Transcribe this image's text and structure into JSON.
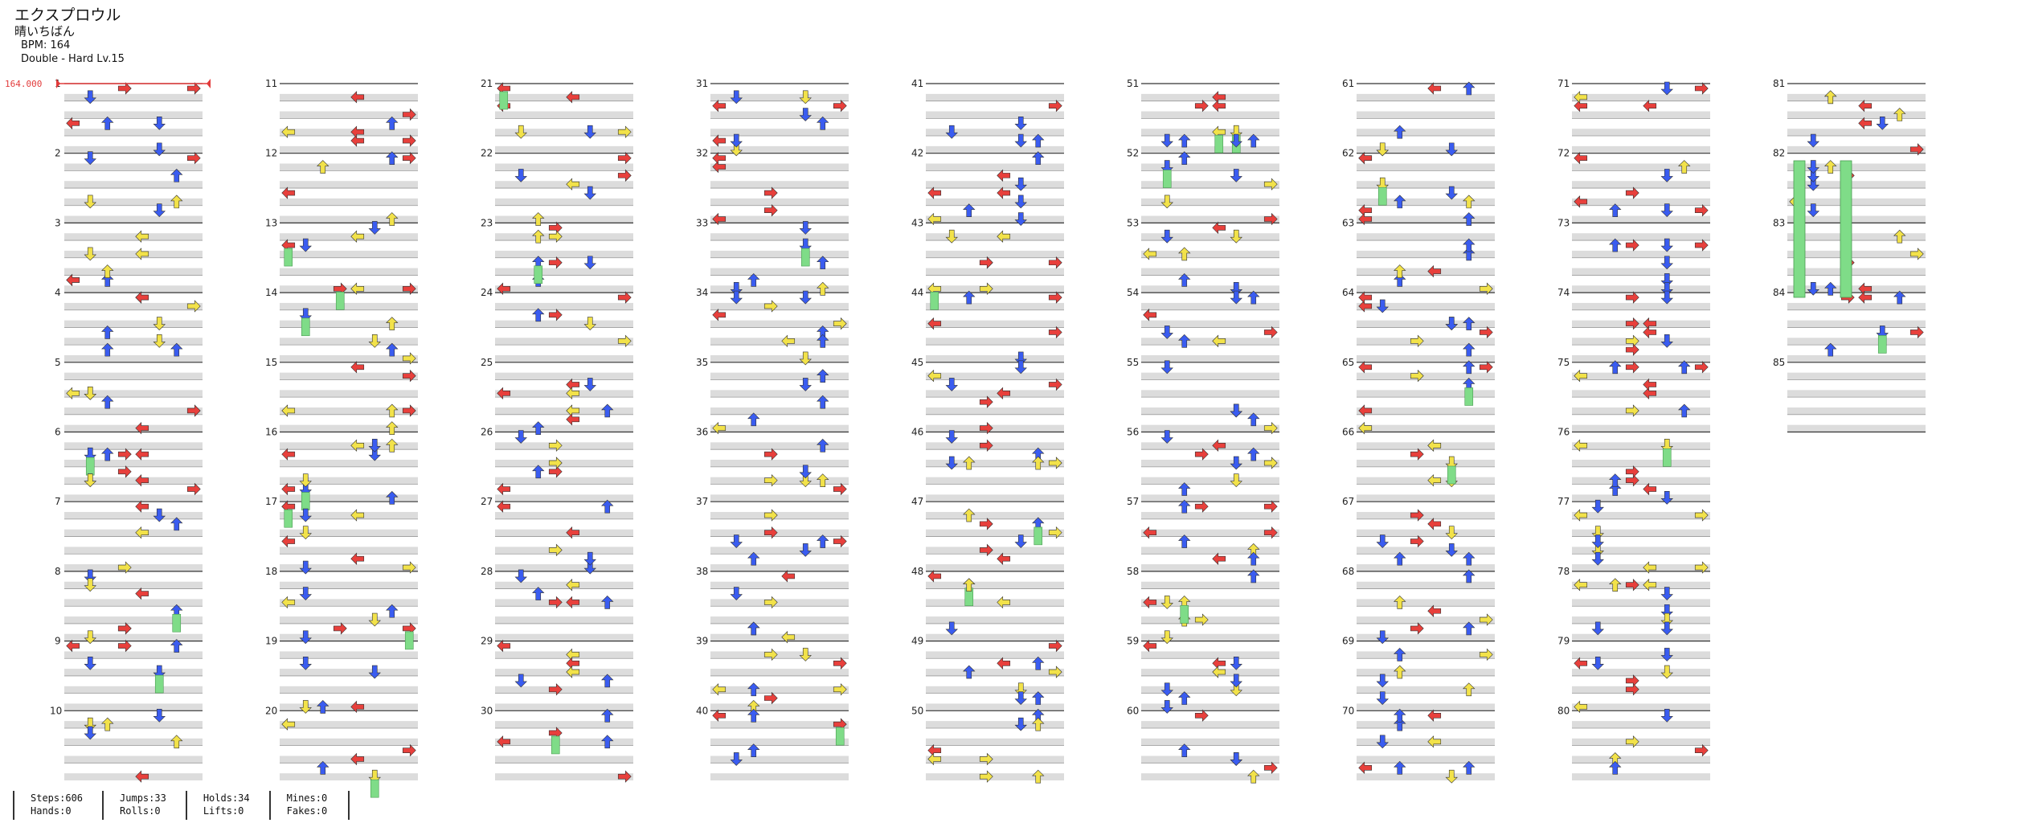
{
  "song": {
    "title": "エクスプロウル",
    "artist": "晴いちばん",
    "bpm_text": "BPM: 164",
    "difficulty_text": "Double - Hard  Lv.15"
  },
  "bpm_marker": "164.000",
  "measure_count": 85,
  "measures_per_column": 10,
  "colors": {
    "left_right_arrow": "#e8403c",
    "up_down_arrow": "#3a5cf0",
    "quarter_yellow": "#f2e24a",
    "hold": "#7fdc88",
    "lane_shade": "#dcdcdc",
    "bpm_line": "#e23b3b"
  },
  "stats": [
    {
      "top": "Steps:606",
      "bottom": "Hands:0"
    },
    {
      "top": "Jumps:33",
      "bottom": "Rolls:0"
    },
    {
      "top": "Holds:34",
      "bottom": "Lifts:0"
    },
    {
      "top": "Mines:0",
      "bottom": "Fakes:0"
    }
  ]
}
